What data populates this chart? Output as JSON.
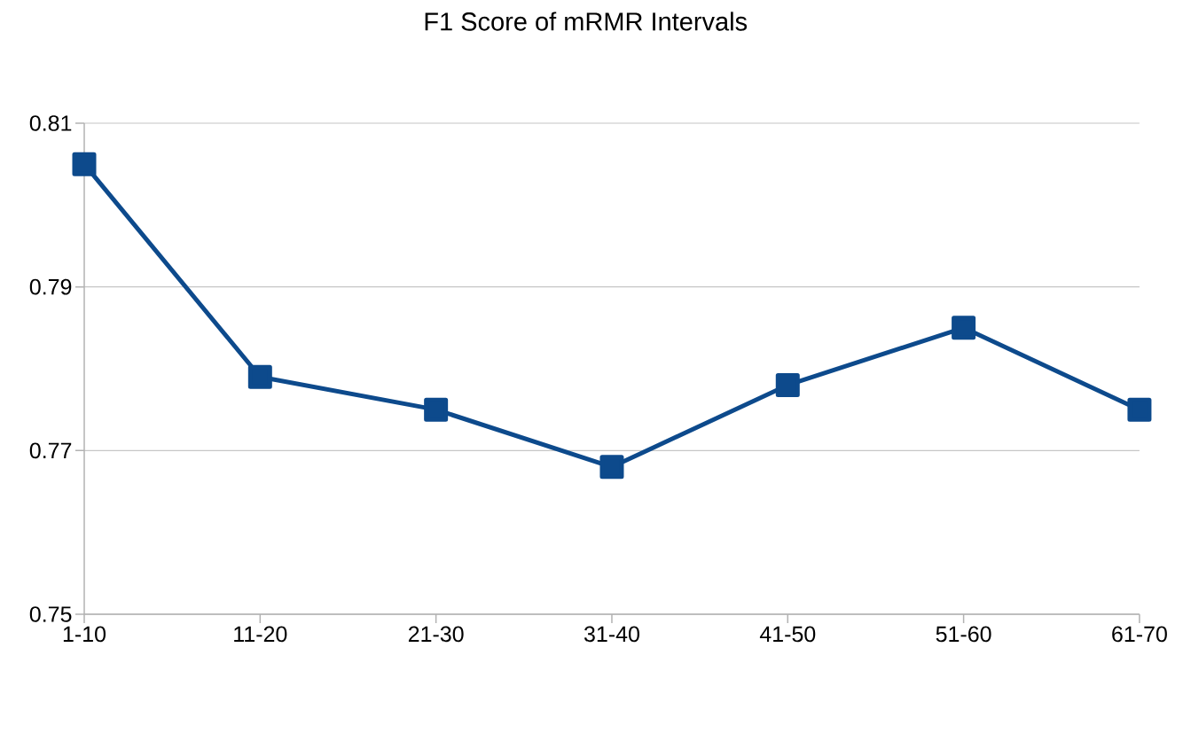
{
  "chart_data": {
    "type": "line",
    "title": "F1 Score of mRMR Intervals",
    "categories": [
      "1-10",
      "11-20",
      "21-30",
      "31-40",
      "41-50",
      "51-60",
      "61-70"
    ],
    "values": [
      0.805,
      0.779,
      0.775,
      0.768,
      0.778,
      0.785,
      0.775
    ],
    "color": "#0d4a8c",
    "ylim": [
      0.75,
      0.81
    ],
    "yticks": [
      0.75,
      0.77,
      0.79,
      0.81
    ],
    "grid": "y",
    "marker": "square",
    "line_style": "solid"
  }
}
